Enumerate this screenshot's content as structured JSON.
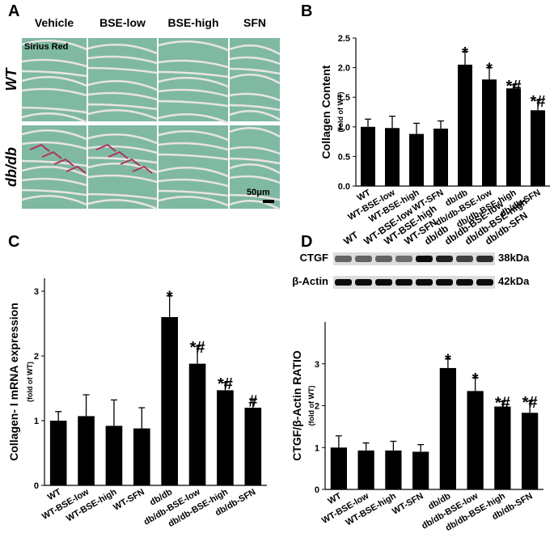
{
  "panel_labels": [
    "A",
    "B",
    "C",
    "D"
  ],
  "micrograph": {
    "columns": [
      "Vehicle",
      "BSE-low",
      "BSE-high",
      "SFN"
    ],
    "rows": [
      "WT",
      "db/db"
    ],
    "stain": "Sirius Red",
    "scale_bar": "50μm"
  },
  "blot": {
    "proteins": [
      {
        "name": "CTGF",
        "size": "38kDa"
      },
      {
        "name": "β-Actin",
        "size": "42kDa"
      }
    ]
  },
  "chart_data": [
    {
      "type": "bar",
      "y_label": "Collagen Content",
      "y_sublabel": "(fold of WT)",
      "categories": [
        "WT",
        "WT-BSE-low",
        "WT-BSE-high",
        "WT-SFN",
        "db/db",
        "db/db-BSE-low",
        "db/db-BSE-high",
        "db/db-SFN"
      ],
      "values": [
        1.0,
        0.98,
        0.88,
        0.97,
        2.05,
        1.8,
        1.65,
        1.28
      ],
      "errors": [
        0.13,
        0.2,
        0.18,
        0.13,
        0.22,
        0.2,
        0.06,
        0.17
      ],
      "annotations": [
        null,
        null,
        null,
        null,
        "*",
        "*",
        "*#",
        "*#"
      ],
      "color": "#000000",
      "ylim": [
        0,
        2.5
      ],
      "yticks": [
        {
          "value": 0,
          "label": "0.0"
        },
        0.5,
        {
          "value": 1,
          "label": "1.0"
        },
        1.5,
        {
          "value": 2,
          "label": "2.0"
        },
        2.5
      ]
    },
    {
      "type": "bar",
      "y_label": "Collagen- I mRNA expression",
      "y_sublabel": "(fold of WT)",
      "categories": [
        "WT",
        "WT-BSE-low",
        "WT-BSE-high",
        "WT-SFN",
        "db/db",
        "db/db-BSE-low",
        "db/db-BSE-high",
        "db/db-SFN"
      ],
      "values": [
        1.0,
        1.07,
        0.92,
        0.88,
        2.6,
        1.88,
        1.47,
        1.2
      ],
      "errors": [
        0.14,
        0.33,
        0.4,
        0.32,
        0.33,
        0.27,
        0.12,
        0.12
      ],
      "annotations": [
        null,
        null,
        null,
        null,
        "*",
        "*#",
        "*#",
        "#"
      ],
      "color": "#000000",
      "ylim": [
        0,
        3.2
      ],
      "yticks": [
        0,
        1,
        2,
        3
      ]
    },
    {
      "type": "bar",
      "y_label": "CTGF/β-Actin RATIO",
      "y_sublabel": "(fold of WT)",
      "categories": [
        "WT",
        "WT-BSE-low",
        "WT-BSE-high",
        "WT-SFN",
        "db/db",
        "db/db-BSE-low",
        "db/db-BSE-high",
        "db/db-SFN"
      ],
      "values": [
        1.0,
        0.93,
        0.93,
        0.9,
        2.9,
        2.35,
        1.98,
        1.83
      ],
      "errors": [
        0.28,
        0.18,
        0.22,
        0.17,
        0.22,
        0.32,
        0.12,
        0.28
      ],
      "annotations": [
        null,
        null,
        null,
        null,
        "*",
        "*",
        "*#",
        "*#"
      ],
      "color": "#000000",
      "ylim": [
        0,
        4
      ],
      "yticks": [
        0,
        1,
        2,
        3
      ]
    }
  ]
}
